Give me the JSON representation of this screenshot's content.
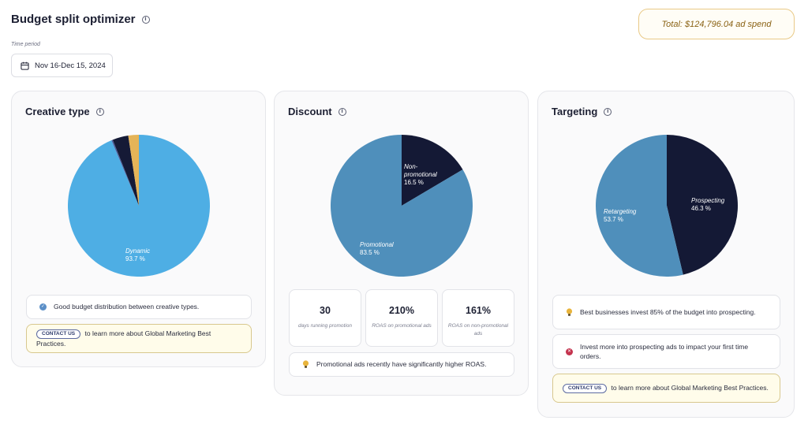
{
  "header": {
    "title": "Budget split optimizer",
    "total": "Total: $124,796.04 ad spend",
    "period_label": "Time period",
    "period_value": "Nov 16-Dec 15, 2024"
  },
  "colors": {
    "dark_navy": "#141935",
    "sky_blue": "#4eaee4",
    "steel_blue": "#4f8fbb",
    "gold": "#e5b458",
    "badge_gold": "#8a6214"
  },
  "creative": {
    "title": "Creative type",
    "slices": [
      {
        "label": "Dynamic",
        "value": 93.7,
        "color": "#4eaee4",
        "display": "93.7 %"
      },
      {
        "label": "",
        "value": 0.3,
        "color": "#4c5d9c",
        "display": ""
      },
      {
        "label": "",
        "value": 3.6,
        "color": "#151a36",
        "display": ""
      },
      {
        "label": "",
        "value": 2.4,
        "color": "#e5b458",
        "display": ""
      }
    ],
    "note_good": "Good budget distribution between creative types.",
    "contact_label": "CONTACT US",
    "contact_text": "to learn more about Global Marketing Best Practices."
  },
  "discount": {
    "title": "Discount",
    "slices": [
      {
        "label": "Non-promotional",
        "value": 16.5,
        "color": "#141935",
        "display": "16.5 %"
      },
      {
        "label": "Promotional",
        "value": 83.5,
        "color": "#4f8fbb",
        "display": "83.5 %"
      }
    ],
    "stats": [
      {
        "value": "30",
        "desc": "days running promotion"
      },
      {
        "value": "210%",
        "desc": "ROAS on promotional ads"
      },
      {
        "value": "161%",
        "desc": "ROAS on non-promotional ads"
      }
    ],
    "note": "Promotional ads recently have significantly higher ROAS."
  },
  "targeting": {
    "title": "Targeting",
    "slices": [
      {
        "label": "Prospecting",
        "value": 46.3,
        "color": "#141935",
        "display": "46.3 %"
      },
      {
        "label": "Retargeting",
        "value": 53.7,
        "color": "#4f8fbb",
        "display": "53.7 %"
      }
    ],
    "note_best": "Best businesses invest 85% of the budget into prospecting.",
    "note_invest": "Invest more into prospecting ads to impact your first time orders.",
    "contact_label": "CONTACT US",
    "contact_text": "to learn more about Global Marketing Best Practices."
  }
}
